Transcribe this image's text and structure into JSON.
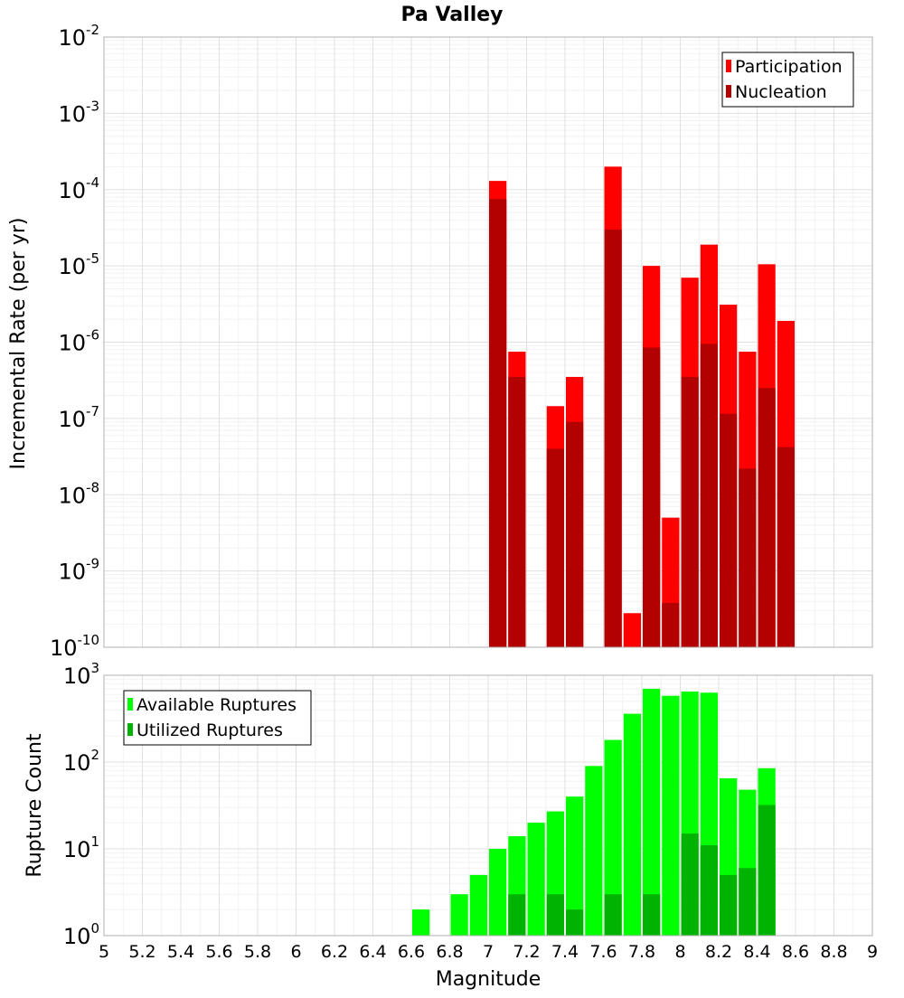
{
  "title": "Pa Valley",
  "colors": {
    "participation": "#ff0000",
    "nucleation": "#b30000",
    "available": "#00ff00",
    "utilized": "#00b300",
    "grid_major": "#e0e0e0",
    "grid_minor": "#f2f2f2",
    "frame": "#b0b0b0"
  },
  "chart_data": [
    {
      "type": "bar",
      "scale": "log",
      "ylabel": "Incremental Rate (per yr)",
      "ylim_exp": [
        -10,
        -2
      ],
      "xlim": [
        5,
        9
      ],
      "grid": true,
      "legend_position": "top-right",
      "x": [
        7.05,
        7.15,
        7.25,
        7.35,
        7.45,
        7.55,
        7.65,
        7.75,
        7.85,
        7.95,
        8.05,
        8.15,
        8.25,
        8.35,
        8.45,
        8.55
      ],
      "series": [
        {
          "name": "Participation",
          "color": "participation",
          "values": [
            0.00013,
            7.5e-07,
            null,
            1.45e-07,
            3.5e-07,
            null,
            0.0002,
            2.8e-10,
            1e-05,
            5e-09,
            7e-06,
            1.9e-05,
            3.1e-06,
            7.5e-07,
            1.05e-05,
            1.9e-06
          ]
        },
        {
          "name": "Nucleation",
          "color": "nucleation",
          "values": [
            7.5e-05,
            3.5e-07,
            null,
            4e-08,
            9e-08,
            null,
            3e-05,
            null,
            8.5e-07,
            3.8e-10,
            3.5e-07,
            9.5e-07,
            1.15e-07,
            2.2e-08,
            2.5e-07,
            4.2e-08
          ]
        }
      ]
    },
    {
      "type": "bar",
      "scale": "log",
      "xlabel": "Magnitude",
      "ylabel": "Rupture Count",
      "ylim_exp": [
        0,
        3
      ],
      "xlim": [
        5,
        9
      ],
      "grid": true,
      "legend_position": "top-left",
      "x": [
        6.65,
        6.75,
        6.85,
        6.95,
        7.05,
        7.15,
        7.25,
        7.35,
        7.45,
        7.55,
        7.65,
        7.75,
        7.85,
        7.95,
        8.05,
        8.15,
        8.25,
        8.35,
        8.45,
        8.55
      ],
      "series": [
        {
          "name": "Available Ruptures",
          "color": "available",
          "values": [
            2,
            null,
            3,
            5,
            10,
            14,
            20,
            27,
            40,
            90,
            180,
            360,
            700,
            580,
            650,
            630,
            65,
            48,
            85,
            1
          ]
        },
        {
          "name": "Utilized Ruptures",
          "color": "utilized",
          "values": [
            null,
            null,
            null,
            null,
            1,
            3,
            null,
            3,
            2,
            null,
            3,
            1,
            3,
            1,
            15,
            11,
            5,
            6,
            32,
            1
          ]
        }
      ]
    }
  ],
  "x_ticks": [
    "5",
    "5.2",
    "5.4",
    "5.6",
    "5.8",
    "6",
    "6.2",
    "6.4",
    "6.6",
    "6.8",
    "7",
    "7.2",
    "7.4",
    "7.6",
    "7.8",
    "8",
    "8.2",
    "8.4",
    "8.6",
    "8.8",
    "9"
  ]
}
